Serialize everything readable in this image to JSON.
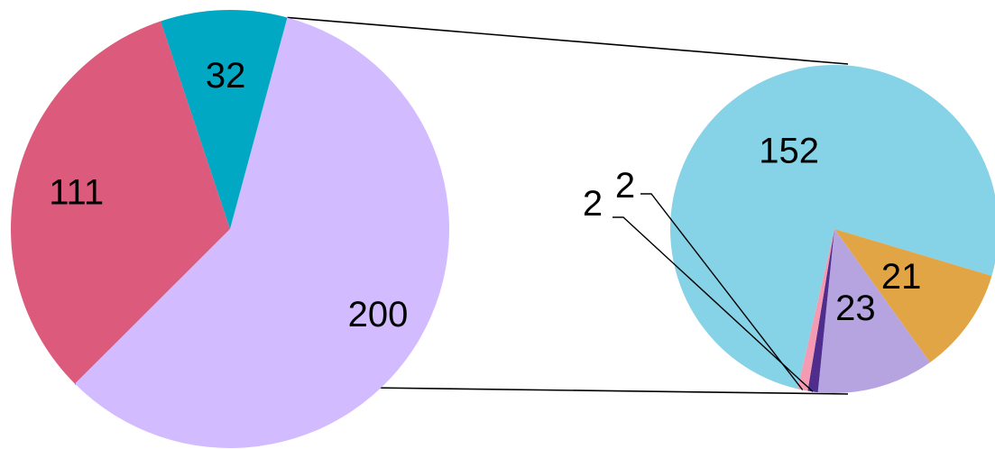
{
  "chart_data": [
    {
      "type": "pie",
      "role": "main",
      "slices": [
        {
          "value": 200,
          "label": "200",
          "color": "#d2bbff"
        },
        {
          "value": 111,
          "label": "111",
          "color": "#dc5a7c"
        },
        {
          "value": 32,
          "label": "32",
          "color": "#00a8c4"
        }
      ]
    },
    {
      "type": "pie",
      "role": "breakout",
      "slices": [
        {
          "value": 152,
          "label": "152",
          "color": "#86d2e6"
        },
        {
          "value": 21,
          "label": "21",
          "color": "#e2a545"
        },
        {
          "value": 23,
          "label": "23",
          "color": "#b5a4e0"
        },
        {
          "value": 2,
          "label": "2",
          "color": "#4e2d8c"
        },
        {
          "value": 2,
          "label": "2",
          "color": "#f49bb3"
        }
      ]
    }
  ]
}
